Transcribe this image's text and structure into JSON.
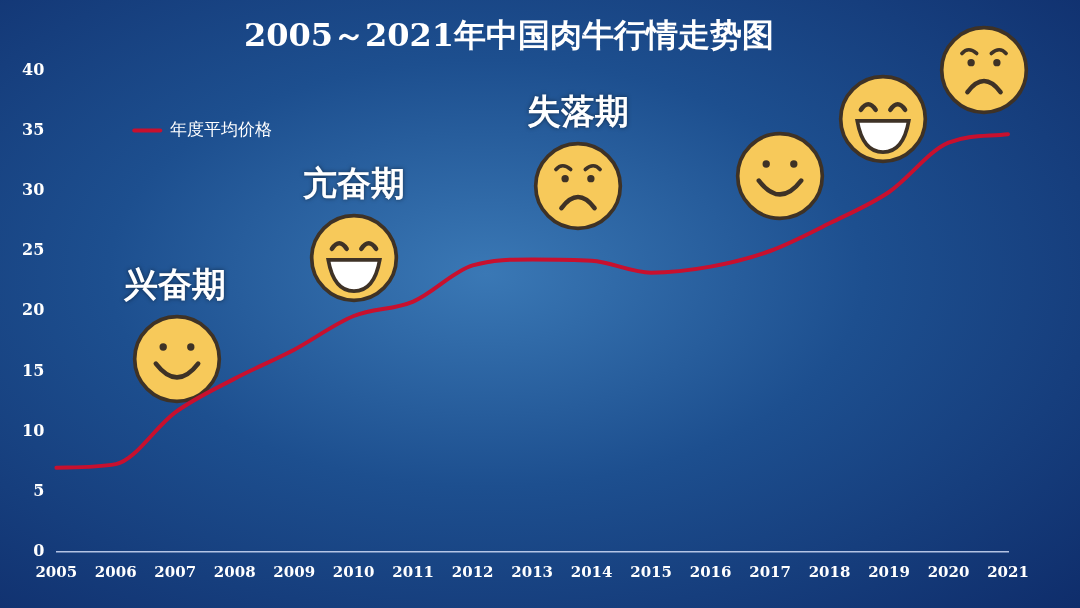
{
  "chart_data": {
    "type": "line",
    "title": "2005～2021年中国肉牛行情走势图",
    "categories": [
      "2005",
      "2006",
      "2007",
      "2008",
      "2009",
      "2010",
      "2011",
      "2012",
      "2013",
      "2014",
      "2015",
      "2016",
      "2017",
      "2018",
      "2019",
      "2020",
      "2021"
    ],
    "series": [
      {
        "name": "年度平均价格",
        "color": "#c8102e",
        "values": [
          7.0,
          7.3,
          11.6,
          14.4,
          16.8,
          19.6,
          20.8,
          23.8,
          24.3,
          24.2,
          23.2,
          23.7,
          25.0,
          27.3,
          29.9,
          34.0,
          34.7
        ]
      }
    ],
    "ylim": [
      0,
      40
    ],
    "yticks": [
      0,
      5,
      10,
      15,
      20,
      25,
      30,
      35,
      40
    ],
    "grid": false,
    "legend": "top left",
    "marker": "none",
    "line_style": "solid",
    "annotations": [
      "兴奋期",
      "亢奋期",
      "失落期"
    ]
  }
}
